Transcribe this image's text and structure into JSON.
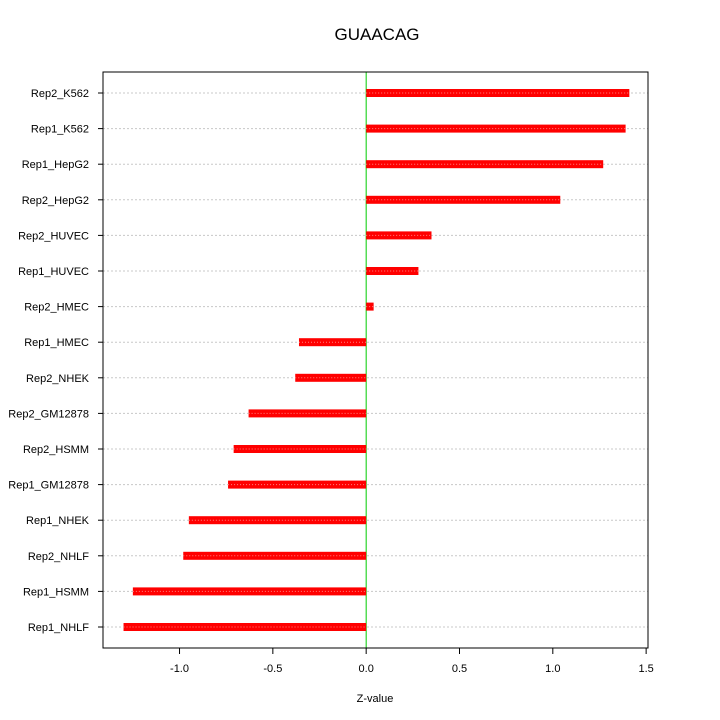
{
  "chart_data": {
    "type": "bar",
    "orientation": "horizontal",
    "title": "GUAACAG",
    "xlabel": "Z-value",
    "ylabel": "",
    "xlim": [
      -1.41,
      1.51
    ],
    "xticks": [
      -1.0,
      -0.5,
      0.0,
      0.5,
      1.0,
      1.5
    ],
    "xtick_labels": [
      "-1.0",
      "-0.5",
      "0.0",
      "0.5",
      "1.0",
      "1.5"
    ],
    "grid": "horizontal dotted at each category",
    "zero_line": true,
    "colors": {
      "bar": "#ff0000",
      "bar_highlight": "#ff8080",
      "zero_line": "#00cc00",
      "grid": "#c8c8c8",
      "axis": "#000000"
    },
    "categories": [
      "Rep2_K562",
      "Rep1_K562",
      "Rep1_HepG2",
      "Rep2_HepG2",
      "Rep2_HUVEC",
      "Rep1_HUVEC",
      "Rep2_HMEC",
      "Rep1_HMEC",
      "Rep2_NHEK",
      "Rep2_GM12878",
      "Rep2_HSMM",
      "Rep1_GM12878",
      "Rep1_NHEK",
      "Rep2_NHLF",
      "Rep1_HSMM",
      "Rep1_NHLF"
    ],
    "values": [
      1.41,
      1.39,
      1.27,
      1.04,
      0.35,
      0.28,
      0.04,
      -0.36,
      -0.38,
      -0.63,
      -0.71,
      -0.74,
      -0.95,
      -0.98,
      -1.25,
      -1.3
    ]
  }
}
